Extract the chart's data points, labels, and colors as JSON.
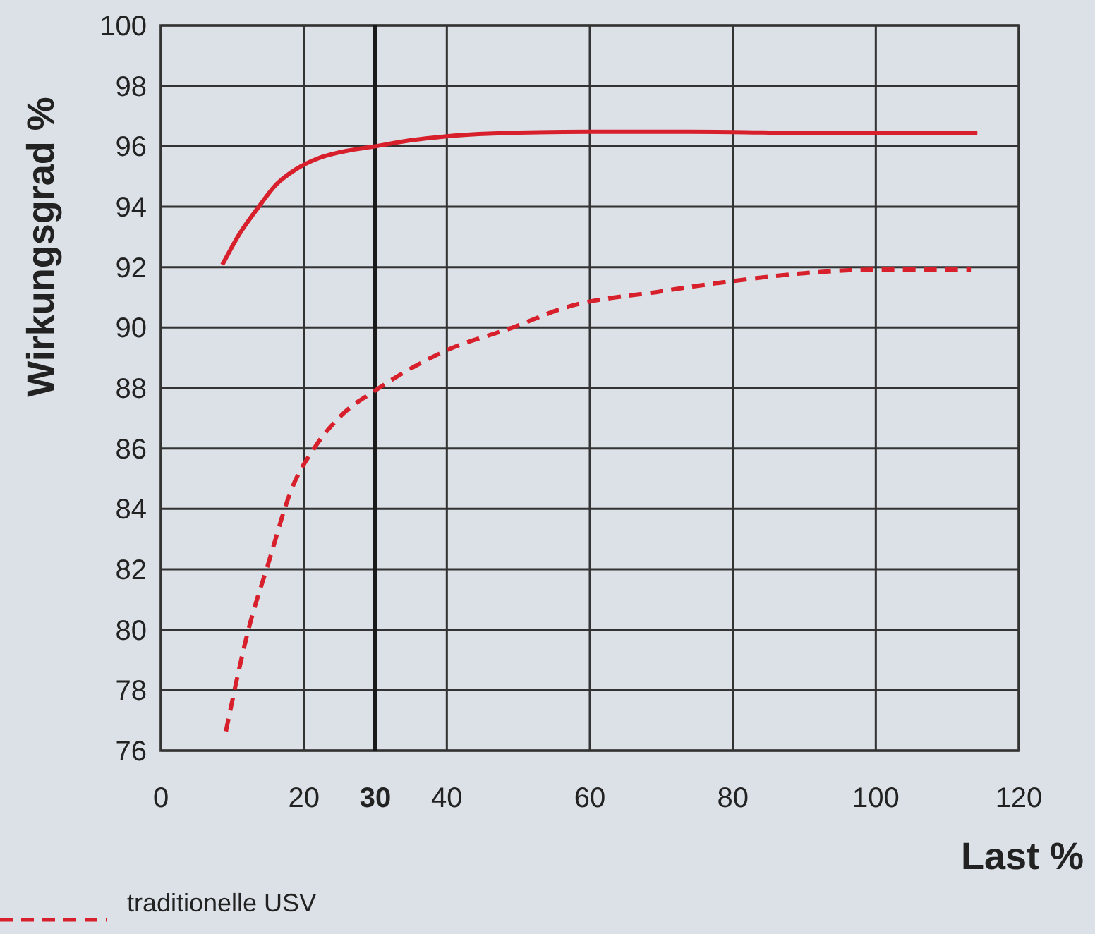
{
  "chart_data": {
    "type": "line",
    "xlabel": "Last %",
    "ylabel": "Wirkungsgrad %",
    "xlim": [
      0,
      120
    ],
    "xticks": [
      0,
      20,
      40,
      60,
      80,
      100,
      120
    ],
    "ylim": [
      76,
      100
    ],
    "yticks": [
      76,
      78,
      80,
      82,
      84,
      86,
      88,
      90,
      92,
      94,
      96,
      98,
      100
    ],
    "grid": true,
    "legend": "bottom left",
    "marker": "none",
    "ref_lines": [
      {
        "axis": "x",
        "value": 30,
        "label": "30",
        "color": "#1a1a1a"
      }
    ],
    "series": [
      {
        "color": "#d7202b",
        "line_style": "solid",
        "x": [
          8.6,
          11,
          13.7,
          16,
          18.9,
          22,
          25,
          30,
          35,
          40,
          50,
          60,
          70,
          80,
          90,
          100,
          114.2
        ],
        "values": [
          92.08,
          93.1,
          94.0,
          94.7,
          95.24,
          95.6,
          95.8,
          96.0,
          96.2,
          96.33,
          96.45,
          96.48,
          96.48,
          96.47,
          96.44,
          96.44,
          96.44
        ]
      },
      {
        "name": "traditionelle USV",
        "color": "#d7202b",
        "line_style": "dashed",
        "x": [
          9.1,
          12.4,
          15.0,
          18.3,
          21.6,
          25.5,
          30,
          40,
          49.2,
          56.4,
          70,
          80,
          90,
          99.9,
          113.3
        ],
        "values": [
          76.64,
          80.14,
          82.17,
          84.66,
          86.06,
          87.15,
          87.92,
          89.25,
          90.0,
          90.65,
          91.2,
          91.54,
          91.8,
          91.92,
          91.92
        ]
      }
    ]
  }
}
